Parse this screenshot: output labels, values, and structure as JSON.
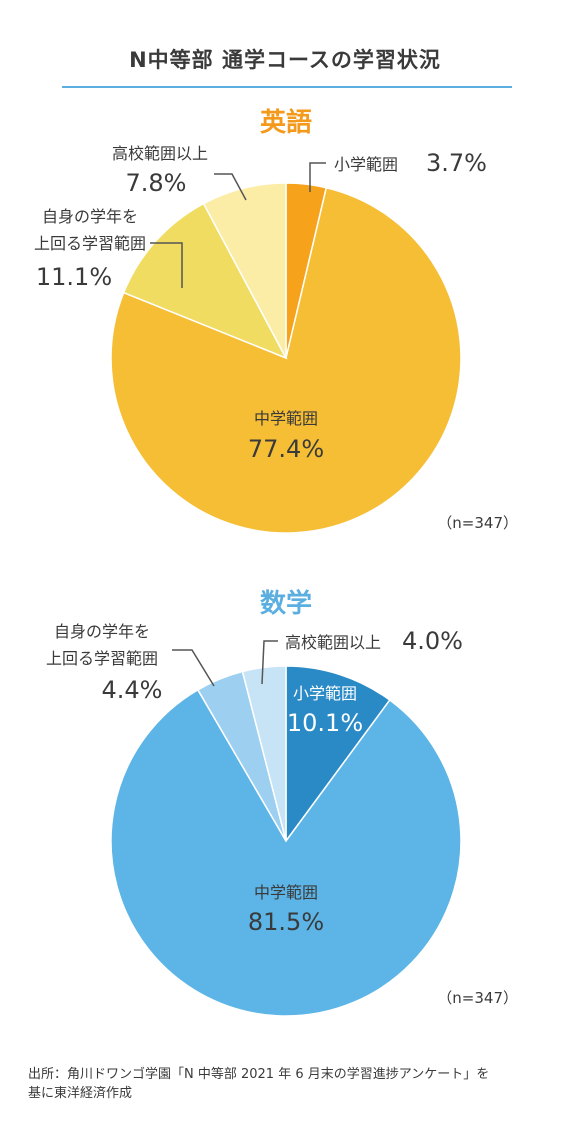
{
  "title": "N中等部 通学コースの学習状況",
  "chart_data": [
    {
      "type": "pie",
      "title": "英語",
      "title_color": "#f39a1c",
      "sample": "（n=347）",
      "slices": [
        {
          "label": "小学範囲",
          "value": 3.7,
          "display": "3.7%",
          "color": "#f7a21b"
        },
        {
          "label": "中学範囲",
          "value": 77.4,
          "display": "77.4%",
          "color": "#f5be35"
        },
        {
          "label": "自身の学年を上回る学習範囲",
          "label_lines": [
            "自身の学年を",
            "上回る学習範囲"
          ],
          "value": 11.1,
          "display": "11.1%",
          "color": "#f1dc62"
        },
        {
          "label": "高校範囲以上",
          "value": 7.8,
          "display": "7.8%",
          "color": "#fbeca6"
        }
      ]
    },
    {
      "type": "pie",
      "title": "数学",
      "title_color": "#5aaee0",
      "sample": "（n=347）",
      "slices": [
        {
          "label": "小学範囲",
          "value": 10.1,
          "display": "10.1%",
          "color": "#2a8ac6"
        },
        {
          "label": "中学範囲",
          "value": 81.5,
          "display": "81.5%",
          "color": "#5cb5e6"
        },
        {
          "label": "自身の学年を上回る学習範囲",
          "label_lines": [
            "自身の学年を",
            "上回る学習範囲"
          ],
          "value": 4.4,
          "display": "4.4%",
          "color": "#9ccff0"
        },
        {
          "label": "高校範囲以上",
          "value": 4.0,
          "display": "4.0%",
          "color": "#c7e4f6"
        }
      ]
    }
  ],
  "source_lines": [
    "出所：角川ドワンゴ学園「N 中等部 2021 年 6 月末の学習進捗アンケート」を",
    "基に東洋経済作成"
  ]
}
